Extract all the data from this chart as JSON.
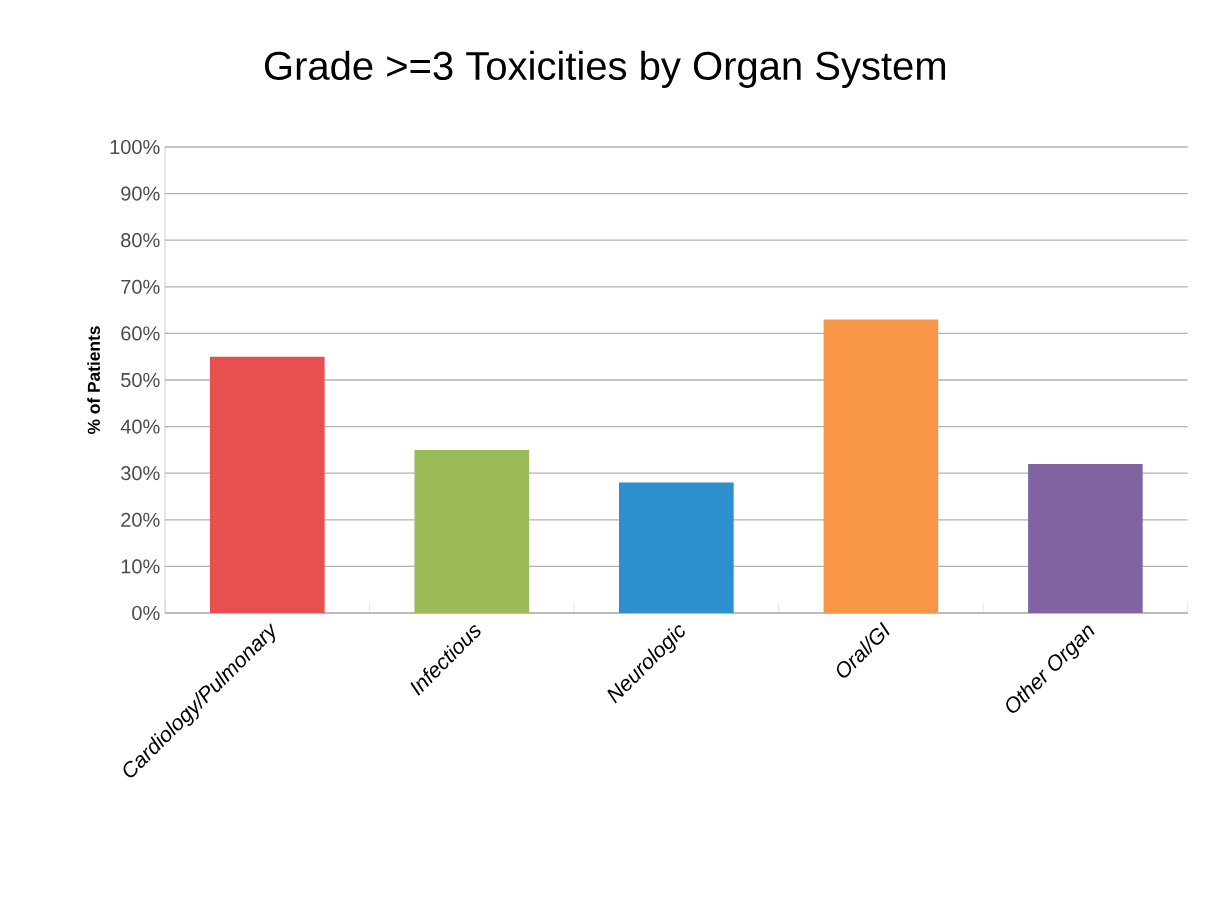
{
  "chart_data": {
    "type": "bar",
    "title": "Grade >=3 Toxicities by Organ System",
    "ylabel": "% of Patients",
    "categories": [
      "Cardiology/Pulmonary",
      "Infectious",
      "Neurologic",
      "Oral/GI",
      "Other Organ"
    ],
    "values": [
      55,
      35,
      28,
      63,
      32
    ],
    "colors": [
      "#e8504f",
      "#9bbb59",
      "#2e8fcf",
      "#f79646",
      "#8064a2"
    ],
    "ylim": [
      0,
      100
    ],
    "yticks": [
      {
        "value": 0,
        "label": "0%"
      },
      {
        "value": 10,
        "label": "10%"
      },
      {
        "value": 20,
        "label": "20%"
      },
      {
        "value": 30,
        "label": "30%"
      },
      {
        "value": 40,
        "label": "40%"
      },
      {
        "value": 50,
        "label": "50%"
      },
      {
        "value": 60,
        "label": "60%"
      },
      {
        "value": 70,
        "label": "70%"
      },
      {
        "value": 80,
        "label": "80%"
      },
      {
        "value": 90,
        "label": "90%"
      },
      {
        "value": 100,
        "label": "100%"
      }
    ],
    "grid": "y"
  }
}
